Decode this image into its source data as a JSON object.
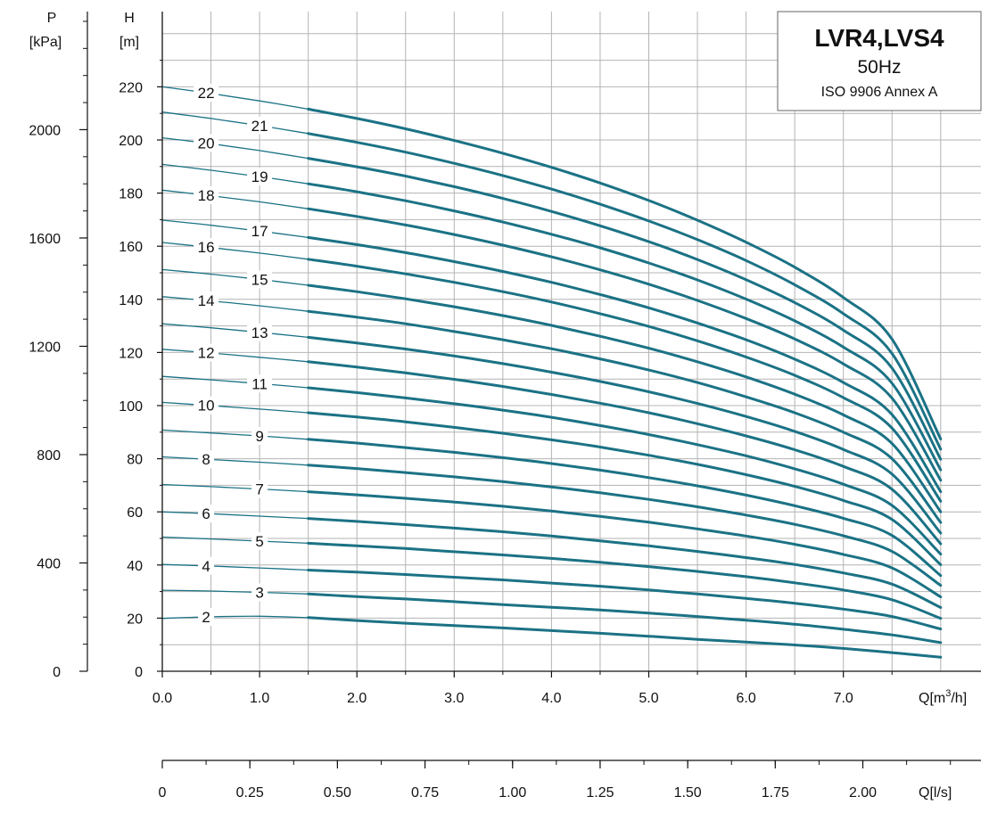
{
  "chart_data": {
    "type": "line",
    "title": "LVR4,LVS4",
    "subtitle": "50Hz",
    "standard": "ISO 9906 Annex A",
    "x_axis": {
      "label": "Q[m³/h]",
      "label_base": "Q[m",
      "label_sup": "3",
      "label_end": "/h]",
      "range": [
        0,
        8.3
      ],
      "ticks": [
        0,
        1,
        2,
        3,
        4,
        5,
        6,
        7
      ],
      "tick_labels": [
        "0.0",
        "1.0",
        "2.0",
        "3.0",
        "4.0",
        "5.0",
        "6.0",
        "7.0"
      ],
      "minor_step": 0.5
    },
    "x2_axis": {
      "label": "Q[l/s]",
      "ticks": [
        0,
        0.25,
        0.5,
        0.75,
        1.0,
        1.25,
        1.5,
        1.75,
        2.0
      ],
      "tick_labels": [
        "0",
        "0.25",
        "0.50",
        "0.75",
        "1.00",
        "1.25",
        "1.50",
        "1.75",
        "2.00"
      ],
      "minor_step": 0.125
    },
    "y_axis": {
      "label": "H",
      "unit": "[m]",
      "range": [
        0,
        245
      ],
      "ticks": [
        0,
        20,
        40,
        60,
        80,
        100,
        120,
        140,
        160,
        180,
        200,
        220
      ],
      "tick_labels": [
        "0",
        "20",
        "40",
        "60",
        "80",
        "100",
        "120",
        "140",
        "160",
        "180",
        "200",
        "220"
      ],
      "minor_step": 10
    },
    "p_axis": {
      "label": "P",
      "unit": "[kPa]",
      "ticks": [
        0,
        400,
        800,
        1200,
        1600,
        2000
      ],
      "tick_labels": [
        "0",
        "400",
        "800",
        "1200",
        "1600",
        "2000"
      ],
      "minor_step": 100
    },
    "grid": true,
    "curve_x": [
      0,
      0.5,
      1.0,
      1.5,
      2.0,
      2.5,
      3.0,
      3.5,
      4.0,
      4.5,
      5.0,
      5.5,
      6.0,
      6.5,
      7.0,
      7.5,
      8.0
    ],
    "series": [
      {
        "name": "2",
        "label_x": 0.45,
        "values": [
          19.9,
          20.5,
          20.7,
          20.2,
          19.1,
          18.1,
          17.2,
          16.3,
          15.3,
          14.3,
          13.2,
          12.0,
          11.0,
          9.9,
          8.6,
          7.0,
          5.3
        ]
      },
      {
        "name": "3",
        "label_x": 1.0,
        "values": [
          30.5,
          30.2,
          29.7,
          29.1,
          28.1,
          27.2,
          26.2,
          25.1,
          24.1,
          23.1,
          21.9,
          20.6,
          19.2,
          17.7,
          15.8,
          13.7,
          10.8
        ]
      },
      {
        "name": "4",
        "label_x": 0.45,
        "values": [
          40.2,
          39.6,
          38.9,
          38.1,
          37.3,
          36.4,
          35.4,
          34.4,
          33.2,
          32.0,
          30.6,
          29.1,
          27.4,
          25.6,
          23.4,
          20.6,
          15.9
        ]
      },
      {
        "name": "5",
        "label_x": 1.0,
        "values": [
          50.5,
          49.8,
          49.0,
          48.2,
          47.2,
          46.2,
          45.0,
          43.8,
          42.5,
          41.0,
          39.4,
          37.6,
          35.6,
          33.3,
          30.6,
          26.9,
          19.9
        ]
      },
      {
        "name": "6",
        "label_x": 0.45,
        "values": [
          60.0,
          59.3,
          58.4,
          57.5,
          56.4,
          55.2,
          53.9,
          52.5,
          50.9,
          49.1,
          47.2,
          45.1,
          42.8,
          40.2,
          37.0,
          32.8,
          24.0
        ]
      },
      {
        "name": "7",
        "label_x": 1.0,
        "values": [
          70.3,
          69.5,
          68.6,
          67.6,
          66.4,
          65.1,
          63.7,
          62.1,
          60.3,
          58.3,
          56.1,
          53.6,
          50.9,
          47.8,
          44.0,
          38.9,
          28.0
        ]
      },
      {
        "name": "8",
        "label_x": 0.45,
        "values": [
          80.7,
          79.7,
          78.7,
          77.6,
          76.3,
          74.8,
          73.2,
          71.4,
          69.4,
          67.2,
          64.7,
          61.9,
          58.8,
          55.3,
          51.0,
          45.1,
          32.3
        ]
      },
      {
        "name": "9",
        "label_x": 1.0,
        "values": [
          90.8,
          89.7,
          88.6,
          87.3,
          85.9,
          84.2,
          82.4,
          80.4,
          78.2,
          75.7,
          72.9,
          69.8,
          66.3,
          62.3,
          57.6,
          51.1,
          36.0
        ]
      },
      {
        "name": "10",
        "label_x": 0.45,
        "values": [
          101.2,
          100.0,
          98.7,
          97.3,
          95.7,
          93.9,
          91.8,
          89.6,
          87.1,
          84.4,
          81.3,
          77.9,
          74.0,
          69.6,
          64.3,
          57.1,
          40.1
        ]
      },
      {
        "name": "11",
        "label_x": 1.0,
        "values": [
          111.0,
          109.7,
          108.3,
          106.7,
          104.9,
          102.9,
          100.7,
          98.3,
          95.6,
          92.5,
          89.1,
          85.3,
          81.1,
          76.2,
          70.4,
          62.4,
          44.1
        ]
      },
      {
        "name": "12",
        "label_x": 0.45,
        "values": [
          121.2,
          119.8,
          118.2,
          116.5,
          114.5,
          112.3,
          109.9,
          107.2,
          104.2,
          100.9,
          97.3,
          93.2,
          88.6,
          83.4,
          77.1,
          68.5,
          48.0
        ]
      },
      {
        "name": "13",
        "label_x": 1.0,
        "values": [
          130.8,
          129.3,
          127.6,
          125.7,
          123.6,
          121.3,
          118.7,
          115.8,
          112.6,
          109.1,
          105.2,
          100.8,
          95.9,
          90.3,
          83.5,
          74.2,
          52.0
        ]
      },
      {
        "name": "14",
        "label_x": 0.45,
        "values": [
          141.0,
          139.4,
          137.6,
          135.5,
          133.3,
          130.8,
          127.9,
          124.8,
          121.4,
          117.6,
          113.4,
          108.7,
          103.3,
          97.3,
          90.0,
          80.0,
          56.0
        ]
      },
      {
        "name": "15",
        "label_x": 1.0,
        "values": [
          151.2,
          149.5,
          147.5,
          145.3,
          142.9,
          140.2,
          137.2,
          133.9,
          130.2,
          126.1,
          121.6,
          116.5,
          110.8,
          104.3,
          96.5,
          85.7,
          60.0
        ]
      },
      {
        "name": "16",
        "label_x": 0.45,
        "values": [
          161.4,
          159.5,
          157.4,
          155.1,
          152.5,
          149.6,
          146.4,
          142.9,
          139.0,
          134.6,
          129.8,
          124.4,
          118.3,
          111.4,
          103.0,
          91.5,
          64.0
        ]
      },
      {
        "name": "17",
        "label_x": 1.0,
        "values": [
          169.8,
          167.9,
          165.7,
          163.3,
          160.6,
          157.6,
          154.2,
          150.5,
          146.4,
          141.8,
          136.8,
          131.1,
          124.8,
          117.5,
          108.7,
          96.6,
          67.6
        ]
      },
      {
        "name": "18",
        "label_x": 0.45,
        "values": [
          181.1,
          179.0,
          176.7,
          174.1,
          171.2,
          168.0,
          164.4,
          160.4,
          156.0,
          151.1,
          145.7,
          139.6,
          132.8,
          125.1,
          115.7,
          102.8,
          71.9
        ]
      },
      {
        "name": "19",
        "label_x": 1.0,
        "values": [
          190.8,
          188.6,
          186.2,
          183.5,
          180.5,
          177.1,
          173.3,
          169.1,
          164.5,
          159.4,
          153.7,
          147.3,
          140.1,
          131.9,
          122.0,
          108.4,
          75.8
        ]
      },
      {
        "name": "20",
        "label_x": 0.45,
        "values": [
          200.8,
          198.6,
          196.0,
          193.1,
          189.9,
          186.4,
          182.4,
          178.0,
          173.1,
          167.7,
          161.7,
          155.0,
          147.4,
          138.8,
          128.4,
          114.1,
          79.8
        ]
      },
      {
        "name": "21",
        "label_x": 1.0,
        "values": [
          210.5,
          208.1,
          205.4,
          202.4,
          199.1,
          195.4,
          191.2,
          186.6,
          181.5,
          175.8,
          169.5,
          162.5,
          154.6,
          145.5,
          134.6,
          119.6,
          83.6
        ]
      },
      {
        "name": "22",
        "label_x": 0.45,
        "values": [
          220.0,
          217.5,
          214.7,
          211.6,
          208.1,
          204.2,
          199.8,
          195.0,
          189.7,
          183.8,
          177.2,
          169.8,
          161.5,
          152.1,
          140.7,
          125.0,
          87.4
        ]
      }
    ],
    "colors": {
      "curve": "#1b7285",
      "grid": "#b4b4b4",
      "axis": "#111111"
    }
  }
}
